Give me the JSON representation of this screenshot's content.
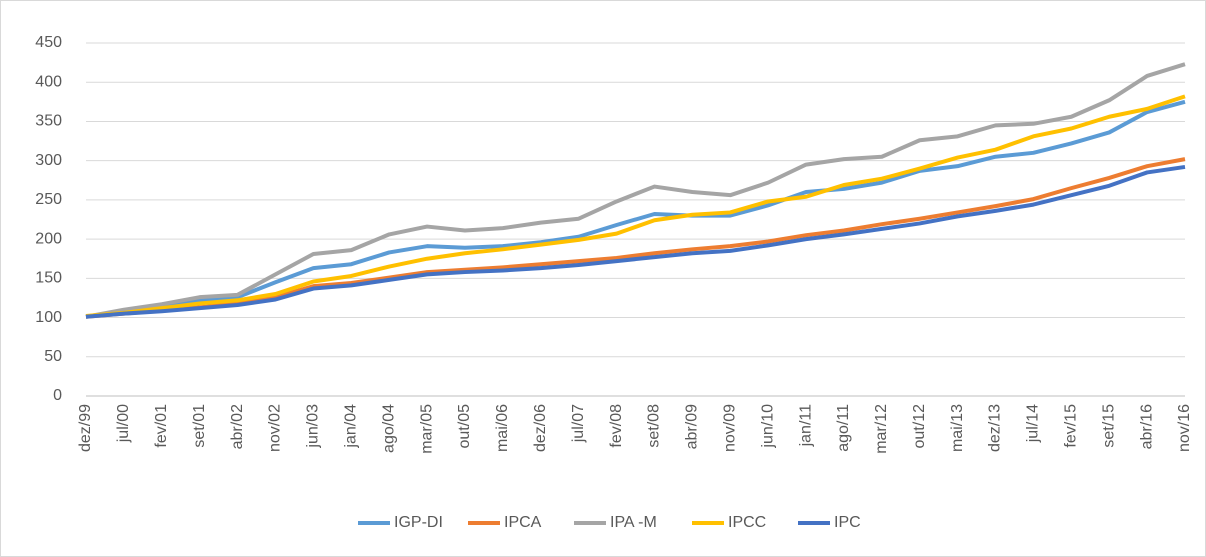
{
  "chart_data": {
    "type": "line",
    "categories": [
      "dez/99",
      "jul/00",
      "fev/01",
      "set/01",
      "abr/02",
      "nov/02",
      "jun/03",
      "jan/04",
      "ago/04",
      "mar/05",
      "out/05",
      "mai/06",
      "dez/06",
      "jul/07",
      "fev/08",
      "set/08",
      "abr/09",
      "nov/09",
      "jun/10",
      "jan/11",
      "ago/11",
      "mar/12",
      "out/12",
      "mai/13",
      "dez/13",
      "jul/14",
      "fev/15",
      "set/15",
      "abr/16",
      "nov/16"
    ],
    "series": [
      {
        "name": "IGP-DI",
        "color": "#5b9bd5",
        "values": [
          101,
          108,
          114,
          122,
          126,
          145,
          163,
          168,
          183,
          191,
          189,
          191,
          196,
          203,
          218,
          232,
          230,
          230,
          243,
          260,
          264,
          272,
          287,
          293,
          305,
          310,
          322,
          336,
          362,
          375
        ]
      },
      {
        "name": "IPCA",
        "color": "#ed7d31",
        "values": [
          101,
          105,
          109,
          113,
          118,
          126,
          140,
          144,
          151,
          158,
          161,
          164,
          168,
          172,
          176,
          182,
          187,
          191,
          197,
          205,
          211,
          219,
          226,
          234,
          242,
          251,
          265,
          278,
          293,
          302
        ]
      },
      {
        "name": "IPA -M",
        "color": "#a5a5a5",
        "values": [
          101,
          110,
          117,
          126,
          129,
          155,
          181,
          186,
          206,
          216,
          211,
          214,
          221,
          226,
          248,
          267,
          260,
          256,
          272,
          295,
          302,
          305,
          326,
          331,
          345,
          347,
          356,
          377,
          408,
          423
        ]
      },
      {
        "name": "IPCC",
        "color": "#ffc000",
        "values": [
          102,
          106,
          112,
          118,
          122,
          130,
          146,
          153,
          165,
          175,
          182,
          187,
          193,
          199,
          207,
          224,
          231,
          234,
          248,
          254,
          269,
          277,
          290,
          304,
          314,
          331,
          341,
          356,
          366,
          382
        ]
      },
      {
        "name": "IPC",
        "color": "#4472c4",
        "values": [
          101,
          105,
          108,
          112,
          116,
          123,
          137,
          141,
          148,
          155,
          158,
          160,
          163,
          167,
          172,
          177,
          182,
          185,
          192,
          200,
          206,
          213,
          220,
          229,
          236,
          244,
          256,
          268,
          285,
          292
        ]
      }
    ],
    "ylim": [
      0,
      450
    ],
    "yticks": [
      0,
      50,
      100,
      150,
      200,
      250,
      300,
      350,
      400,
      450
    ],
    "grid": true,
    "legend": "bottom"
  }
}
